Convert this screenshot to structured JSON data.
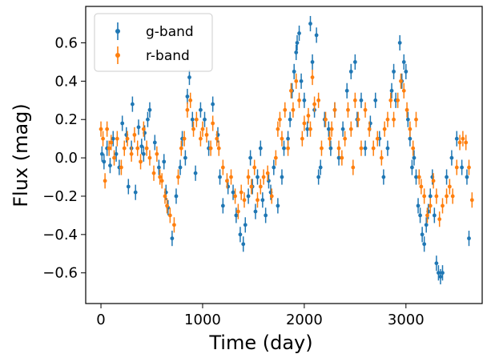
{
  "chart_data": {
    "type": "scatter",
    "xlabel": "Time (day)",
    "ylabel": "Flux (mag)",
    "xlim": [
      -150,
      3750
    ],
    "ylim": [
      -0.76,
      0.79
    ],
    "xticks": [
      0,
      1000,
      2000,
      3000
    ],
    "xtick_labels": [
      "0",
      "1000",
      "2000",
      "3000"
    ],
    "yticks": [
      -0.6,
      -0.4,
      -0.2,
      0.0,
      0.2,
      0.4,
      0.6
    ],
    "ytick_labels": [
      "−0.6",
      "−0.4",
      "−0.2",
      "0.0",
      "0.2",
      "0.4",
      "0.6"
    ],
    "grid": false,
    "legend_position": "top-left",
    "colors": {
      "g": "#1f77b4",
      "r": "#ff7f0e"
    },
    "series": [
      {
        "name": "g-band",
        "color": "#1f77b4",
        "points": [
          [
            10,
            0.02,
            0.04
          ],
          [
            30,
            -0.02,
            0.04
          ],
          [
            60,
            0.05,
            0.04
          ],
          [
            90,
            -0.04,
            0.04
          ],
          [
            120,
            0.1,
            0.04
          ],
          [
            150,
            0.02,
            0.04
          ],
          [
            180,
            -0.05,
            0.04
          ],
          [
            210,
            0.18,
            0.04
          ],
          [
            250,
            0.12,
            0.04
          ],
          [
            270,
            -0.15,
            0.04
          ],
          [
            300,
            0.05,
            0.04
          ],
          [
            310,
            0.28,
            0.04
          ],
          [
            340,
            -0.18,
            0.04
          ],
          [
            370,
            0.16,
            0.04
          ],
          [
            400,
            0.06,
            0.04
          ],
          [
            420,
            0.02,
            0.04
          ],
          [
            430,
            0.13,
            0.04
          ],
          [
            460,
            0.2,
            0.04
          ],
          [
            480,
            0.25,
            0.04
          ],
          [
            530,
            0.08,
            0.04
          ],
          [
            570,
            -0.05,
            0.04
          ],
          [
            620,
            -0.02,
            0.04
          ],
          [
            640,
            -0.18,
            0.04
          ],
          [
            660,
            -0.26,
            0.04
          ],
          [
            700,
            -0.42,
            0.04
          ],
          [
            740,
            -0.2,
            0.04
          ],
          [
            780,
            -0.05,
            0.04
          ],
          [
            800,
            0.1,
            0.04
          ],
          [
            830,
            0.0,
            0.04
          ],
          [
            850,
            0.32,
            0.04
          ],
          [
            870,
            0.42,
            0.04
          ],
          [
            900,
            0.2,
            0.04
          ],
          [
            930,
            -0.08,
            0.04
          ],
          [
            980,
            0.25,
            0.04
          ],
          [
            1020,
            0.2,
            0.04
          ],
          [
            1060,
            0.05,
            0.04
          ],
          [
            1100,
            0.28,
            0.04
          ],
          [
            1150,
            0.12,
            0.04
          ],
          [
            1170,
            -0.1,
            0.04
          ],
          [
            1200,
            -0.25,
            0.04
          ],
          [
            1250,
            -0.15,
            0.04
          ],
          [
            1300,
            -0.18,
            0.04
          ],
          [
            1330,
            -0.3,
            0.04
          ],
          [
            1370,
            -0.4,
            0.04
          ],
          [
            1400,
            -0.45,
            0.04
          ],
          [
            1420,
            -0.35,
            0.04
          ],
          [
            1450,
            -0.2,
            0.04
          ],
          [
            1470,
            0.0,
            0.04
          ],
          [
            1490,
            -0.15,
            0.04
          ],
          [
            1520,
            -0.28,
            0.04
          ],
          [
            1540,
            -0.1,
            0.04
          ],
          [
            1570,
            0.05,
            0.04
          ],
          [
            1590,
            -0.22,
            0.04
          ],
          [
            1620,
            -0.3,
            0.04
          ],
          [
            1650,
            -0.12,
            0.04
          ],
          [
            1670,
            -0.18,
            0.04
          ],
          [
            1700,
            -0.05,
            0.04
          ],
          [
            1740,
            -0.25,
            0.04
          ],
          [
            1780,
            -0.1,
            0.04
          ],
          [
            1800,
            0.05,
            0.04
          ],
          [
            1840,
            0.1,
            0.04
          ],
          [
            1860,
            0.2,
            0.04
          ],
          [
            1880,
            0.35,
            0.04
          ],
          [
            1900,
            0.45,
            0.04
          ],
          [
            1920,
            0.55,
            0.04
          ],
          [
            1930,
            0.6,
            0.04
          ],
          [
            1950,
            0.65,
            0.04
          ],
          [
            1970,
            0.4,
            0.04
          ],
          [
            2000,
            0.3,
            0.04
          ],
          [
            2030,
            0.15,
            0.04
          ],
          [
            2060,
            0.7,
            0.04
          ],
          [
            2080,
            0.5,
            0.04
          ],
          [
            2100,
            0.25,
            0.04
          ],
          [
            2120,
            0.64,
            0.04
          ],
          [
            2140,
            -0.1,
            0.04
          ],
          [
            2160,
            -0.05,
            0.04
          ],
          [
            2200,
            0.2,
            0.04
          ],
          [
            2240,
            0.15,
            0.04
          ],
          [
            2260,
            0.05,
            0.04
          ],
          [
            2300,
            0.25,
            0.04
          ],
          [
            2340,
            0.0,
            0.04
          ],
          [
            2380,
            0.15,
            0.04
          ],
          [
            2420,
            0.35,
            0.04
          ],
          [
            2460,
            0.45,
            0.04
          ],
          [
            2500,
            0.5,
            0.04
          ],
          [
            2520,
            0.2,
            0.04
          ],
          [
            2560,
            0.3,
            0.04
          ],
          [
            2600,
            0.05,
            0.04
          ],
          [
            2650,
            0.18,
            0.04
          ],
          [
            2700,
            0.3,
            0.04
          ],
          [
            2740,
            0.1,
            0.04
          ],
          [
            2780,
            -0.1,
            0.04
          ],
          [
            2820,
            0.05,
            0.04
          ],
          [
            2860,
            0.35,
            0.04
          ],
          [
            2880,
            0.45,
            0.04
          ],
          [
            2900,
            0.3,
            0.04
          ],
          [
            2940,
            0.6,
            0.04
          ],
          [
            2960,
            0.4,
            0.04
          ],
          [
            2980,
            0.5,
            0.04
          ],
          [
            3000,
            0.45,
            0.04
          ],
          [
            3020,
            0.2,
            0.04
          ],
          [
            3040,
            0.1,
            0.04
          ],
          [
            3060,
            -0.05,
            0.04
          ],
          [
            3080,
            0.0,
            0.04
          ],
          [
            3100,
            -0.1,
            0.04
          ],
          [
            3120,
            -0.25,
            0.04
          ],
          [
            3140,
            -0.3,
            0.04
          ],
          [
            3160,
            -0.4,
            0.04
          ],
          [
            3180,
            -0.45,
            0.04
          ],
          [
            3200,
            -0.35,
            0.04
          ],
          [
            3220,
            -0.28,
            0.04
          ],
          [
            3240,
            -0.2,
            0.04
          ],
          [
            3260,
            -0.1,
            0.04
          ],
          [
            3280,
            -0.3,
            0.04
          ],
          [
            3300,
            -0.55,
            0.04
          ],
          [
            3320,
            -0.6,
            0.04
          ],
          [
            3340,
            -0.62,
            0.04
          ],
          [
            3360,
            -0.6,
            0.04
          ],
          [
            3400,
            -0.1,
            0.04
          ],
          [
            3450,
            0.0,
            0.04
          ],
          [
            3500,
            0.1,
            0.04
          ],
          [
            3550,
            -0.05,
            0.04
          ],
          [
            3600,
            -0.1,
            0.04
          ],
          [
            3620,
            -0.42,
            0.04
          ]
        ]
      },
      {
        "name": "r-band",
        "color": "#ff7f0e",
        "points": [
          [
            0,
            0.15,
            0.04
          ],
          [
            20,
            0.1,
            0.04
          ],
          [
            40,
            -0.12,
            0.04
          ],
          [
            60,
            0.15,
            0.04
          ],
          [
            80,
            0.05,
            0.04
          ],
          [
            100,
            0.08,
            0.04
          ],
          [
            130,
            0.0,
            0.04
          ],
          [
            160,
            0.1,
            0.04
          ],
          [
            200,
            -0.05,
            0.04
          ],
          [
            230,
            0.05,
            0.04
          ],
          [
            260,
            0.1,
            0.04
          ],
          [
            300,
            0.02,
            0.04
          ],
          [
            330,
            0.12,
            0.04
          ],
          [
            360,
            0.05,
            0.04
          ],
          [
            390,
            -0.02,
            0.04
          ],
          [
            420,
            0.15,
            0.04
          ],
          [
            450,
            0.05,
            0.04
          ],
          [
            480,
            0.0,
            0.04
          ],
          [
            520,
            -0.08,
            0.04
          ],
          [
            550,
            0.02,
            0.04
          ],
          [
            580,
            -0.1,
            0.04
          ],
          [
            600,
            -0.12,
            0.04
          ],
          [
            630,
            -0.2,
            0.04
          ],
          [
            650,
            -0.25,
            0.04
          ],
          [
            680,
            -0.3,
            0.04
          ],
          [
            720,
            -0.35,
            0.04
          ],
          [
            760,
            -0.1,
            0.04
          ],
          [
            790,
            0.05,
            0.04
          ],
          [
            820,
            0.1,
            0.04
          ],
          [
            850,
            0.25,
            0.04
          ],
          [
            880,
            0.3,
            0.04
          ],
          [
            910,
            0.15,
            0.04
          ],
          [
            940,
            0.2,
            0.04
          ],
          [
            980,
            0.1,
            0.04
          ],
          [
            1000,
            0.15,
            0.04
          ],
          [
            1040,
            0.12,
            0.04
          ],
          [
            1080,
            0.05,
            0.04
          ],
          [
            1100,
            0.18,
            0.04
          ],
          [
            1140,
            0.1,
            0.04
          ],
          [
            1160,
            0.05,
            0.04
          ],
          [
            1200,
            -0.05,
            0.04
          ],
          [
            1240,
            -0.12,
            0.04
          ],
          [
            1280,
            -0.1,
            0.04
          ],
          [
            1320,
            -0.2,
            0.04
          ],
          [
            1350,
            -0.28,
            0.04
          ],
          [
            1380,
            -0.18,
            0.04
          ],
          [
            1410,
            -0.22,
            0.04
          ],
          [
            1450,
            -0.1,
            0.04
          ],
          [
            1480,
            -0.15,
            0.04
          ],
          [
            1510,
            -0.05,
            0.04
          ],
          [
            1540,
            -0.22,
            0.04
          ],
          [
            1570,
            -0.15,
            0.04
          ],
          [
            1600,
            -0.1,
            0.04
          ],
          [
            1640,
            -0.08,
            0.04
          ],
          [
            1680,
            -0.2,
            0.04
          ],
          [
            1720,
            0.0,
            0.04
          ],
          [
            1740,
            0.15,
            0.04
          ],
          [
            1760,
            0.2,
            0.04
          ],
          [
            1780,
            0.1,
            0.04
          ],
          [
            1810,
            0.25,
            0.04
          ],
          [
            1840,
            0.05,
            0.04
          ],
          [
            1870,
            0.35,
            0.04
          ],
          [
            1890,
            0.25,
            0.04
          ],
          [
            1920,
            0.4,
            0.04
          ],
          [
            1950,
            0.3,
            0.04
          ],
          [
            1980,
            0.1,
            0.04
          ],
          [
            2000,
            0.18,
            0.04
          ],
          [
            2040,
            0.22,
            0.04
          ],
          [
            2060,
            0.15,
            0.04
          ],
          [
            2080,
            0.42,
            0.04
          ],
          [
            2100,
            0.28,
            0.04
          ],
          [
            2140,
            0.3,
            0.04
          ],
          [
            2170,
            0.05,
            0.04
          ],
          [
            2210,
            0.2,
            0.04
          ],
          [
            2250,
            0.1,
            0.04
          ],
          [
            2270,
            0.15,
            0.04
          ],
          [
            2300,
            0.25,
            0.04
          ],
          [
            2340,
            0.05,
            0.04
          ],
          [
            2370,
            0.0,
            0.04
          ],
          [
            2400,
            0.1,
            0.04
          ],
          [
            2430,
            0.25,
            0.04
          ],
          [
            2460,
            0.15,
            0.04
          ],
          [
            2480,
            -0.05,
            0.04
          ],
          [
            2500,
            0.3,
            0.04
          ],
          [
            2530,
            0.2,
            0.04
          ],
          [
            2560,
            0.05,
            0.04
          ],
          [
            2600,
            0.25,
            0.04
          ],
          [
            2640,
            0.15,
            0.04
          ],
          [
            2680,
            0.05,
            0.04
          ],
          [
            2720,
            0.1,
            0.04
          ],
          [
            2760,
            0.0,
            0.04
          ],
          [
            2790,
            0.15,
            0.04
          ],
          [
            2820,
            0.2,
            0.04
          ],
          [
            2850,
            0.3,
            0.04
          ],
          [
            2880,
            0.2,
            0.04
          ],
          [
            2920,
            0.3,
            0.04
          ],
          [
            2950,
            0.4,
            0.04
          ],
          [
            2980,
            0.35,
            0.04
          ],
          [
            3010,
            0.25,
            0.04
          ],
          [
            3040,
            0.15,
            0.04
          ],
          [
            3070,
            0.05,
            0.04
          ],
          [
            3100,
            0.2,
            0.04
          ],
          [
            3130,
            -0.1,
            0.04
          ],
          [
            3150,
            -0.15,
            0.04
          ],
          [
            3180,
            -0.2,
            0.04
          ],
          [
            3210,
            -0.3,
            0.04
          ],
          [
            3240,
            -0.25,
            0.04
          ],
          [
            3270,
            -0.12,
            0.04
          ],
          [
            3300,
            -0.2,
            0.04
          ],
          [
            3330,
            -0.32,
            0.04
          ],
          [
            3360,
            -0.25,
            0.04
          ],
          [
            3400,
            -0.2,
            0.04
          ],
          [
            3430,
            -0.15,
            0.04
          ],
          [
            3460,
            -0.2,
            0.04
          ],
          [
            3500,
            -0.05,
            0.04
          ],
          [
            3530,
            0.08,
            0.04
          ],
          [
            3560,
            0.1,
            0.04
          ],
          [
            3590,
            0.08,
            0.04
          ],
          [
            3620,
            -0.05,
            0.04
          ],
          [
            3650,
            -0.22,
            0.04
          ]
        ]
      }
    ]
  }
}
